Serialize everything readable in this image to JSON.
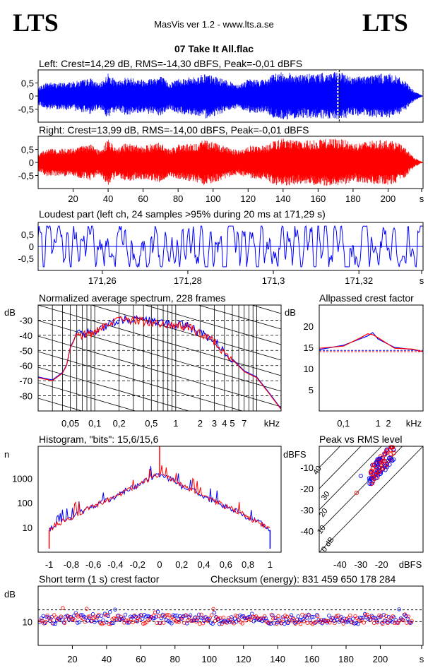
{
  "header": {
    "logo_left": "LTS",
    "logo_right": "LTS",
    "app_title": "MasVis ver 1.2 - www.lts.a.se",
    "file_title": "07 Take It All.flac"
  },
  "panels": {
    "left": {
      "title": "Left: Crest=14,29 dB, RMS=-14,30 dBFS, Peak=-0,01 dBFS",
      "color": "#0000ff"
    },
    "right": {
      "title": "Right: Crest=13,99 dB, RMS=-14,00 dBFS, Peak=-0,01 dBFS",
      "color": "#ff0000"
    },
    "wave_y_ticks": [
      "0,5",
      "0",
      "-0,5"
    ],
    "time_ticks": [
      "20",
      "40",
      "60",
      "80",
      "100",
      "120",
      "140",
      "160",
      "180",
      "200",
      "s"
    ],
    "loudest": {
      "title": "Loudest part (left  ch, 24 samples >95% during 20 ms at 171,29 s)",
      "x_ticks": [
        "171,26",
        "171,28",
        "171,3",
        "171,32",
        "s"
      ]
    },
    "spectrum": {
      "title": "Normalized average spectrum, 228 frames",
      "ylabel": "dB",
      "y_ticks": [
        "-30",
        "-40",
        "-50",
        "-60",
        "-70",
        "-80"
      ],
      "x_ticks": [
        "0,05",
        "0,1",
        "0,2",
        "0,5",
        "1",
        "2",
        "3",
        "4",
        "5",
        "7",
        "kHz"
      ]
    },
    "allpass": {
      "title": "Allpassed crest factor",
      "ylabel": "dB",
      "y_ticks": [
        "20",
        "15",
        "10",
        "5"
      ],
      "x_ticks": [
        "0,1",
        "1",
        "2",
        "kHz"
      ]
    },
    "histogram": {
      "title": "Histogram, \"bits\": 15,6/15,6",
      "ylabel": "n",
      "y_ticks": [
        "1000",
        "100",
        "10"
      ],
      "x_ticks": [
        "-1",
        "-0,8",
        "-0,6",
        "-0,4",
        "-0,2",
        "0",
        "0,2",
        "0,4",
        "0,6",
        "0,8",
        "1"
      ]
    },
    "peak_rms": {
      "title": "Peak vs RMS level",
      "ylabel": "dBFS",
      "y_ticks": [
        "-10",
        "-20",
        "-30",
        "-40"
      ],
      "x_ticks": [
        "-40",
        "-30",
        "-20",
        "dBFS"
      ],
      "diag_labels": [
        "40",
        "30",
        "20",
        "10",
        "0 dB"
      ]
    },
    "short_crest": {
      "title": "Short term (1 s) crest factor",
      "checksum": "Checksum (energy):   831 459 650 178 284",
      "ylabel": "dB",
      "y_ticks": [
        "10"
      ],
      "x_ticks": [
        "20",
        "40",
        "60",
        "80",
        "100",
        "120",
        "140",
        "160",
        "180",
        "200",
        "s"
      ]
    }
  },
  "chart_data": [
    {
      "type": "line",
      "title": "Left: Crest=14,29 dB, RMS=-14,30 dBFS, Peak=-0,01 dBFS",
      "xlabel": "s",
      "ylim": [
        -1,
        1
      ],
      "xlim": [
        0,
        220
      ],
      "envelope_x": [
        0,
        5,
        10,
        20,
        30,
        35,
        40,
        45,
        50,
        60,
        70,
        75,
        80,
        90,
        95,
        100,
        110,
        115,
        120,
        130,
        135,
        140,
        150,
        160,
        170,
        175,
        180,
        190,
        200,
        205,
        210,
        215,
        220
      ],
      "envelope_y": [
        0.35,
        0.6,
        0.55,
        0.6,
        0.75,
        0.5,
        0.95,
        0.6,
        0.8,
        0.7,
        0.85,
        0.55,
        0.75,
        0.8,
        0.95,
        0.85,
        0.6,
        0.5,
        0.7,
        0.7,
        0.95,
        1.0,
        0.9,
        0.95,
        1.0,
        0.95,
        0.8,
        0.9,
        0.95,
        0.85,
        0.6,
        0.2,
        0.0
      ],
      "marker_x": 171.29
    },
    {
      "type": "line",
      "title": "Right: Crest=13,99 dB, RMS=-14,00 dBFS, Peak=-0,01 dBFS",
      "xlabel": "s",
      "ylim": [
        -1,
        1
      ],
      "xlim": [
        0,
        220
      ],
      "envelope_x": [
        0,
        5,
        10,
        20,
        30,
        35,
        40,
        45,
        50,
        60,
        70,
        75,
        80,
        90,
        95,
        100,
        110,
        115,
        120,
        130,
        135,
        140,
        150,
        160,
        170,
        175,
        180,
        190,
        200,
        205,
        210,
        215,
        220
      ],
      "envelope_y": [
        0.35,
        0.6,
        0.55,
        0.6,
        0.75,
        0.5,
        0.95,
        0.6,
        0.8,
        0.7,
        0.85,
        0.55,
        0.75,
        0.8,
        0.95,
        0.85,
        0.6,
        0.5,
        0.7,
        0.7,
        0.95,
        1.0,
        0.9,
        0.95,
        1.0,
        0.95,
        0.8,
        0.9,
        0.95,
        0.85,
        0.6,
        0.2,
        0.0
      ]
    },
    {
      "type": "line",
      "title": "Loudest part (left  ch, 24 samples >95% during 20 ms at 171,29 s)",
      "xlim": [
        171.245,
        171.335
      ],
      "ylim": [
        -1,
        1
      ],
      "amplitude": 0.85
    },
    {
      "type": "line",
      "title": "Normalized average spectrum, 228 frames",
      "xlabel": "kHz",
      "ylabel": "dB",
      "ylim": [
        -90,
        -20
      ],
      "xlim": [
        0.02,
        20
      ],
      "series": [
        {
          "x": [
            0.02,
            0.03,
            0.04,
            0.045,
            0.05,
            0.055,
            0.06,
            0.07,
            0.1,
            0.15,
            0.2,
            0.3,
            0.5,
            0.7,
            1,
            1.5,
            2,
            3,
            4,
            5,
            7,
            10,
            14,
            20
          ],
          "y": [
            -68,
            -70,
            -65,
            -60,
            -48,
            -44,
            -38,
            -40,
            -38,
            -33,
            -30,
            -30,
            -31,
            -33,
            -33,
            -35,
            -39,
            -44,
            -51,
            -56,
            -64,
            -68,
            -78,
            -89
          ]
        }
      ]
    },
    {
      "type": "line",
      "title": "Allpassed crest factor",
      "xlabel": "kHz",
      "ylabel": "dB",
      "ylim": [
        0,
        25
      ],
      "xlim": [
        0.02,
        20
      ],
      "series": [
        {
          "x": [
            0.02,
            0.1,
            0.3,
            0.5,
            0.7,
            1,
            3,
            10,
            20
          ],
          "y": [
            14.5,
            15.5,
            17,
            17.7,
            18.5,
            17,
            15,
            14.5,
            14
          ]
        },
        {
          "x": [
            0.02,
            0.1,
            0.3,
            0.5,
            0.7,
            1,
            3,
            10,
            20
          ],
          "y": [
            14.8,
            15.3,
            17.2,
            18.2,
            18,
            17.3,
            14.8,
            14.6,
            14
          ]
        }
      ],
      "reference_lines": [
        14.3,
        14.0
      ]
    },
    {
      "type": "line",
      "title": "Histogram, \"bits\": 15,6/15,6",
      "ylabel": "n",
      "ylim": [
        1,
        20000
      ],
      "xlim": [
        -1.1,
        1.1
      ],
      "series": [
        {
          "x": [
            -1,
            -0.8,
            -0.6,
            -0.4,
            -0.2,
            0,
            0.2,
            0.4,
            0.6,
            0.8,
            1
          ],
          "y": [
            8,
            25,
            70,
            170,
            500,
            1400,
            500,
            170,
            70,
            25,
            8
          ]
        }
      ]
    },
    {
      "type": "scatter",
      "title": "Peak vs RMS level",
      "xlabel": "dBFS",
      "ylabel": "dBFS",
      "xlim": [
        -50,
        0
      ],
      "ylim": [
        -50,
        0
      ]
    },
    {
      "type": "scatter",
      "title": "Short term (1 s) crest factor",
      "xlabel": "s",
      "ylabel": "dB",
      "xlim": [
        0,
        225
      ],
      "reference_lines": [
        15,
        10
      ]
    }
  ]
}
